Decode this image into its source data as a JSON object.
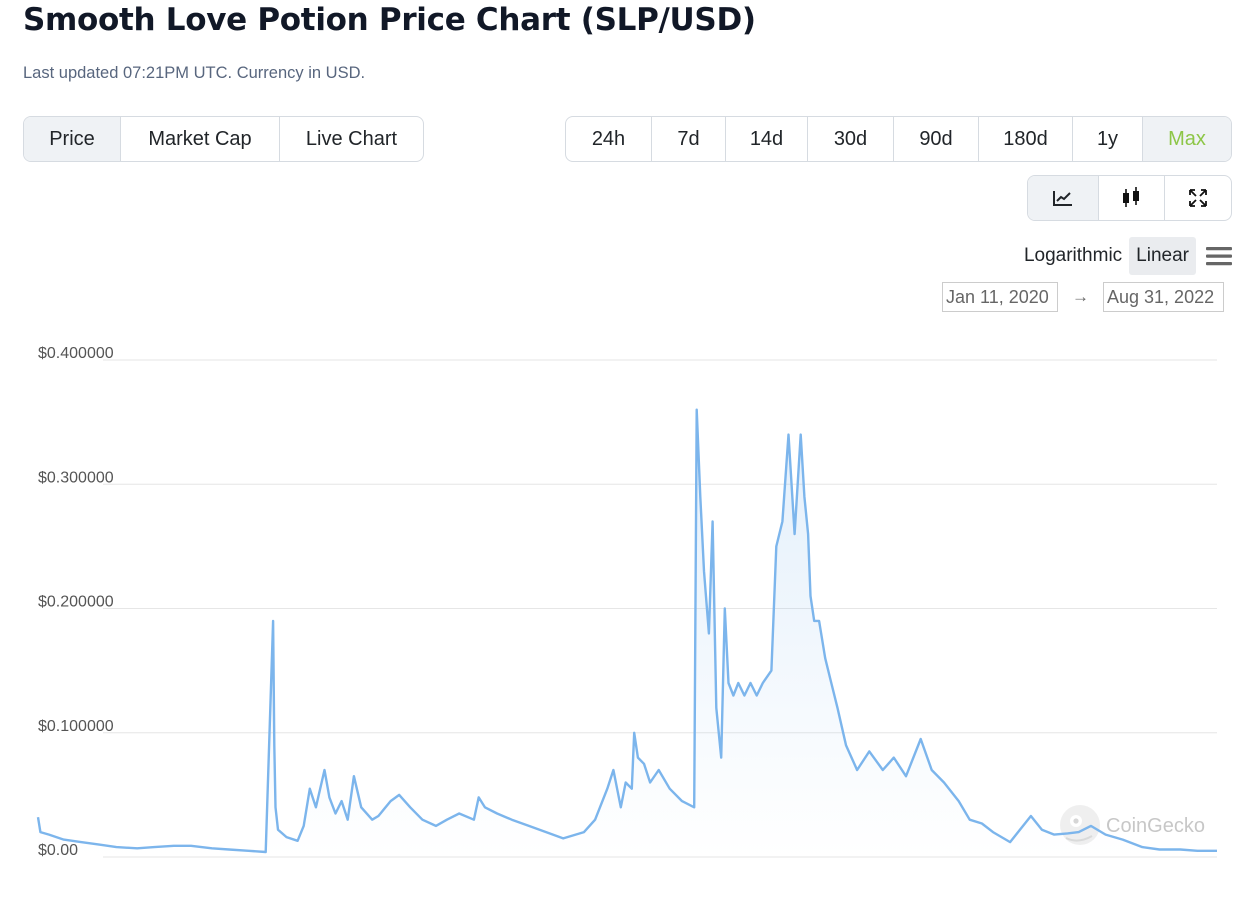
{
  "page": {
    "title": "Smooth Love Potion Price Chart (SLP/USD)",
    "subtitle": "Last updated 07:21PM UTC. Currency in USD."
  },
  "type_tabs": [
    {
      "label": "Price",
      "active": true
    },
    {
      "label": "Market Cap",
      "active": false
    },
    {
      "label": "Live Chart",
      "active": false
    }
  ],
  "range_tabs": [
    {
      "label": "24h",
      "active": false
    },
    {
      "label": "7d",
      "active": false
    },
    {
      "label": "14d",
      "active": false
    },
    {
      "label": "30d",
      "active": false
    },
    {
      "label": "90d",
      "active": false
    },
    {
      "label": "180d",
      "active": false
    },
    {
      "label": "1y",
      "active": false
    },
    {
      "label": "Max",
      "active": true
    }
  ],
  "view_tabs": [
    {
      "icon": "line-chart-icon",
      "active": true
    },
    {
      "icon": "candlestick-icon",
      "active": false
    },
    {
      "icon": "expand-icon",
      "active": false
    }
  ],
  "scale": {
    "logarithmic": "Logarithmic",
    "linear": "Linear",
    "active": "linear"
  },
  "date_range": {
    "from": "Jan 11, 2020",
    "to": "Aug 31, 2022"
  },
  "watermark": "CoinGecko",
  "colors": {
    "line": "#7cb5ec",
    "grid": "#e6e6e6",
    "active_tab_text": "#8dc647"
  },
  "chart_data": {
    "type": "area",
    "title": "",
    "xlabel": "",
    "ylabel": "",
    "y_tick_labels": [
      "$0.00",
      "$0.100000",
      "$0.200000",
      "$0.300000",
      "$0.400000"
    ],
    "y_ticks": [
      0,
      0.1,
      0.2,
      0.3,
      0.4
    ],
    "xlim": [
      "2020-01-11",
      "2022-08-31"
    ],
    "ylim": [
      0,
      0.4
    ],
    "grid": true,
    "legend": "none",
    "series": [
      {
        "x": [
          "2020-01-11",
          "2020-01-13",
          "2020-01-20",
          "2020-02-01",
          "2020-02-15",
          "2020-03-01",
          "2020-03-15",
          "2020-04-01",
          "2020-04-15",
          "2020-05-01",
          "2020-05-15",
          "2020-06-01",
          "2020-06-15",
          "2020-07-01",
          "2020-07-15",
          "2020-07-21",
          "2020-07-22",
          "2020-07-23",
          "2020-07-25",
          "2020-08-01",
          "2020-08-10",
          "2020-08-15",
          "2020-08-20",
          "2020-08-25",
          "2020-09-01",
          "2020-09-05",
          "2020-09-10",
          "2020-09-15",
          "2020-09-20",
          "2020-09-25",
          "2020-10-01",
          "2020-10-10",
          "2020-10-15",
          "2020-10-25",
          "2020-11-01",
          "2020-11-10",
          "2020-11-20",
          "2020-12-01",
          "2020-12-10",
          "2020-12-20",
          "2021-01-01",
          "2021-01-05",
          "2021-01-10",
          "2021-01-20",
          "2021-02-01",
          "2021-02-15",
          "2021-03-01",
          "2021-03-15",
          "2021-04-01",
          "2021-04-10",
          "2021-04-20",
          "2021-04-25",
          "2021-05-01",
          "2021-05-05",
          "2021-05-10",
          "2021-05-12",
          "2021-05-15",
          "2021-05-20",
          "2021-05-25",
          "2021-06-01",
          "2021-06-10",
          "2021-06-20",
          "2021-06-30",
          "2021-07-02",
          "2021-07-05",
          "2021-07-08",
          "2021-07-12",
          "2021-07-15",
          "2021-07-18",
          "2021-07-22",
          "2021-07-25",
          "2021-07-28",
          "2021-08-01",
          "2021-08-05",
          "2021-08-10",
          "2021-08-15",
          "2021-08-20",
          "2021-08-25",
          "2021-09-01",
          "2021-09-05",
          "2021-09-10",
          "2021-09-15",
          "2021-09-20",
          "2021-09-25",
          "2021-09-28",
          "2021-10-01",
          "2021-10-03",
          "2021-10-06",
          "2021-10-10",
          "2021-10-15",
          "2021-10-20",
          "2021-10-25",
          "2021-11-01",
          "2021-11-10",
          "2021-11-20",
          "2021-12-01",
          "2021-12-10",
          "2021-12-20",
          "2022-01-01",
          "2022-01-10",
          "2022-01-20",
          "2022-02-01",
          "2022-02-10",
          "2022-02-20",
          "2022-03-01",
          "2022-03-15",
          "2022-04-01",
          "2022-04-10",
          "2022-04-20",
          "2022-05-01",
          "2022-05-10",
          "2022-05-20",
          "2022-06-01",
          "2022-06-15",
          "2022-07-01",
          "2022-07-15",
          "2022-08-01",
          "2022-08-15",
          "2022-08-31"
        ],
        "y": [
          0.032,
          0.02,
          0.018,
          0.014,
          0.012,
          0.01,
          0.008,
          0.007,
          0.008,
          0.009,
          0.009,
          0.007,
          0.006,
          0.005,
          0.004,
          0.19,
          0.09,
          0.04,
          0.022,
          0.016,
          0.013,
          0.025,
          0.055,
          0.04,
          0.07,
          0.048,
          0.035,
          0.045,
          0.03,
          0.065,
          0.04,
          0.03,
          0.033,
          0.045,
          0.05,
          0.04,
          0.03,
          0.025,
          0.03,
          0.035,
          0.03,
          0.048,
          0.04,
          0.035,
          0.03,
          0.025,
          0.02,
          0.015,
          0.02,
          0.03,
          0.055,
          0.07,
          0.04,
          0.06,
          0.055,
          0.1,
          0.08,
          0.075,
          0.06,
          0.07,
          0.055,
          0.045,
          0.04,
          0.36,
          0.29,
          0.23,
          0.18,
          0.27,
          0.12,
          0.08,
          0.2,
          0.14,
          0.13,
          0.14,
          0.13,
          0.14,
          0.13,
          0.14,
          0.15,
          0.25,
          0.27,
          0.34,
          0.26,
          0.34,
          0.29,
          0.26,
          0.21,
          0.19,
          0.19,
          0.16,
          0.14,
          0.12,
          0.09,
          0.07,
          0.085,
          0.07,
          0.08,
          0.065,
          0.095,
          0.07,
          0.06,
          0.045,
          0.03,
          0.027,
          0.02,
          0.012,
          0.033,
          0.022,
          0.018,
          0.019,
          0.02,
          0.025,
          0.018,
          0.014,
          0.008,
          0.006,
          0.006,
          0.005,
          0.005
        ]
      }
    ]
  }
}
